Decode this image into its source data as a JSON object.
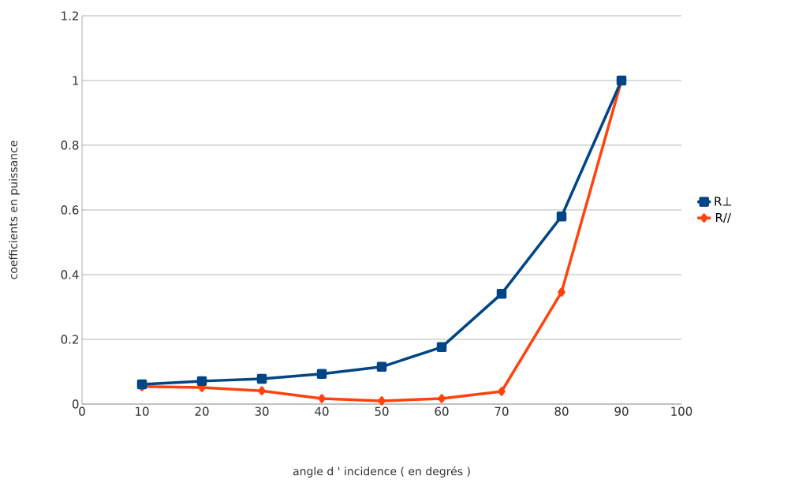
{
  "chart_data": {
    "type": "line",
    "xlabel": "angle d ' incidence ( en degrés )",
    "ylabel": "coefficients en puissance",
    "x": [
      10,
      20,
      30,
      40,
      50,
      60,
      70,
      80,
      90
    ],
    "series": [
      {
        "name": "R⊥",
        "color": "#004586",
        "marker": "square",
        "values": [
          0.061,
          0.071,
          0.078,
          0.093,
          0.115,
          0.176,
          0.341,
          0.58,
          1.0
        ]
      },
      {
        "name": "R//",
        "color": "#ff420e",
        "marker": "diamond",
        "values": [
          0.054,
          0.051,
          0.041,
          0.017,
          0.01,
          0.017,
          0.039,
          0.346,
          1.0
        ]
      }
    ],
    "xlim": [
      0,
      100
    ],
    "xticks": [
      0,
      10,
      20,
      30,
      40,
      50,
      60,
      70,
      80,
      90,
      100
    ],
    "ylim": [
      0,
      1.2
    ],
    "yticks": [
      0,
      0.2,
      0.4,
      0.6,
      0.8,
      1,
      1.2
    ],
    "grid": "y",
    "legend": "right",
    "line_style": "solid"
  }
}
